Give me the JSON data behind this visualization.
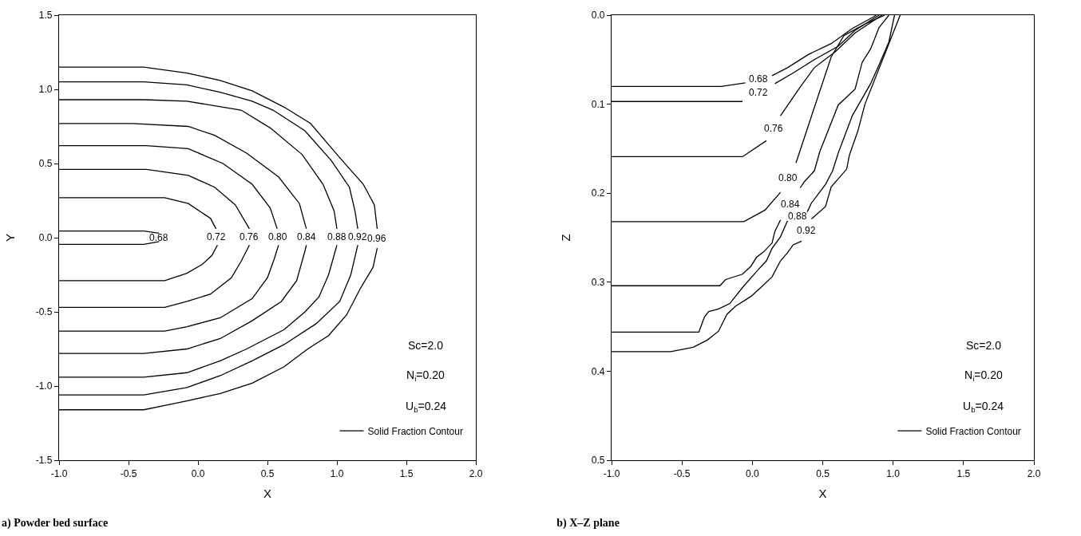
{
  "chart_data": [
    {
      "type": "line",
      "title": "a) Powder bed surface",
      "xlabel": "X",
      "ylabel": "Y",
      "xlim": [
        -1,
        2
      ],
      "ylim": [
        -1.5,
        1.5
      ],
      "xticks": [
        {
          "value": -1,
          "label": "-1.0"
        },
        {
          "value": -0.5,
          "label": "-0.5"
        },
        {
          "value": 0,
          "label": "0.0"
        },
        {
          "value": 0.5,
          "label": "0.5"
        },
        {
          "value": 1,
          "label": "1.0"
        },
        {
          "value": 1.5,
          "label": "1.5"
        },
        {
          "value": 2,
          "label": "2.0"
        }
      ],
      "yticks": [
        {
          "value": -1.5,
          "label": "-1.5"
        },
        {
          "value": -1,
          "label": "-1.0"
        },
        {
          "value": -0.5,
          "label": "-0.5"
        },
        {
          "value": 0,
          "label": "0.0"
        },
        {
          "value": 0.5,
          "label": "0.5"
        },
        {
          "value": 1,
          "label": "1.0"
        },
        {
          "value": 1.5,
          "label": "1.5"
        }
      ],
      "grid": false,
      "legend": "bottom right",
      "marker": "none",
      "line_style": "solid",
      "series": [
        {
          "name": "Solid Fraction Contour",
          "color": "#000000",
          "x": [
            -1,
            -0.39,
            -0.28,
            null,
            -0.28,
            -0.39,
            -1
          ],
          "values": [
            0.045,
            0.045,
            0.03,
            null,
            -0.026,
            -0.045,
            -0.045
          ]
        },
        {
          "color": "#000000",
          "x": [
            -1,
            -0.24,
            -0.07,
            0.09,
            0.13,
            null,
            0.14,
            0.1,
            0.03,
            -0.08,
            -0.24,
            -1
          ],
          "values": [
            0.27,
            0.27,
            0.23,
            0.13,
            0.06,
            null,
            -0.05,
            -0.12,
            -0.18,
            -0.24,
            -0.29,
            -0.29
          ]
        },
        {
          "color": "#000000",
          "x": [
            -1,
            -0.37,
            -0.07,
            0.12,
            0.27,
            0.37,
            null,
            0.37,
            0.31,
            0.24,
            0.09,
            -0.08,
            -0.24,
            -1
          ],
          "values": [
            0.46,
            0.46,
            0.42,
            0.34,
            0.22,
            0.06,
            null,
            -0.05,
            -0.16,
            -0.27,
            -0.38,
            -0.43,
            -0.47,
            -0.47
          ]
        },
        {
          "color": "#000000",
          "x": [
            -1,
            -0.37,
            -0.07,
            0.18,
            0.39,
            0.52,
            0.57,
            null,
            0.58,
            0.55,
            0.5,
            0.39,
            0.16,
            -0.08,
            -0.24,
            -1
          ],
          "values": [
            0.62,
            0.62,
            0.6,
            0.5,
            0.36,
            0.2,
            0.06,
            null,
            -0.05,
            -0.14,
            -0.27,
            -0.41,
            -0.54,
            -0.6,
            -0.63,
            -0.63
          ]
        },
        {
          "color": "#000000",
          "x": [
            -1,
            -0.47,
            -0.07,
            0.12,
            0.35,
            0.58,
            0.73,
            0.78,
            null,
            0.78,
            0.77,
            0.71,
            0.6,
            0.39,
            0.16,
            -0.08,
            -0.39,
            -1
          ],
          "values": [
            0.77,
            0.77,
            0.75,
            0.69,
            0.57,
            0.41,
            0.23,
            0.06,
            null,
            -0.05,
            -0.09,
            -0.29,
            -0.43,
            -0.56,
            -0.68,
            -0.75,
            -0.78,
            -0.78
          ]
        },
        {
          "color": "#000000",
          "x": [
            -1,
            -0.39,
            -0.08,
            0.31,
            0.52,
            0.75,
            0.9,
            0.98,
            1.0,
            null,
            1.0,
            0.94,
            0.87,
            0.77,
            0.62,
            0.35,
            0.16,
            -0.08,
            -0.39,
            -1
          ],
          "values": [
            0.93,
            0.93,
            0.92,
            0.86,
            0.74,
            0.56,
            0.36,
            0.18,
            0.06,
            null,
            -0.05,
            -0.25,
            -0.4,
            -0.5,
            -0.62,
            -0.75,
            -0.83,
            -0.91,
            -0.94,
            -0.94
          ]
        },
        {
          "color": "#000000",
          "x": [
            -1,
            -0.39,
            -0.08,
            0.16,
            0.39,
            0.54,
            0.77,
            0.96,
            1.09,
            1.13,
            1.15,
            null,
            1.15,
            1.1,
            1.02,
            0.85,
            0.62,
            0.39,
            0.16,
            -0.08,
            -0.39,
            -1
          ],
          "values": [
            1.05,
            1.05,
            1.03,
            0.98,
            0.92,
            0.86,
            0.72,
            0.52,
            0.34,
            0.18,
            0.06,
            null,
            -0.05,
            -0.25,
            -0.43,
            -0.58,
            -0.72,
            -0.83,
            -0.93,
            -1.01,
            -1.06,
            -1.06
          ]
        },
        {
          "color": "#000000",
          "x": [
            -1,
            -0.39,
            -0.08,
            0.16,
            0.39,
            0.62,
            0.81,
            1.02,
            1.19,
            1.27,
            1.29,
            null,
            1.29,
            1.26,
            1.17,
            1.07,
            0.94,
            0.79,
            0.62,
            0.39,
            0.16,
            -0.08,
            -0.39,
            -1
          ],
          "values": [
            1.15,
            1.15,
            1.11,
            1.06,
            0.99,
            0.88,
            0.77,
            0.54,
            0.36,
            0.22,
            0.06,
            null,
            -0.07,
            -0.2,
            -0.34,
            -0.52,
            -0.66,
            -0.75,
            -0.87,
            -0.98,
            -1.05,
            -1.1,
            -1.16,
            -1.16
          ]
        }
      ],
      "annotations": [
        "0.68",
        "0.72",
        "0.76",
        "0.80",
        "0.84",
        "0.88",
        "0.92",
        "0.96",
        "Sc=2.0",
        "N$_{i}$=0.20",
        "U$_{b}$=0.24"
      ]
    },
    {
      "type": "line",
      "title": "b) X–Z plane",
      "xlabel": "X",
      "ylabel": "Z",
      "xlim": [
        -1,
        2
      ],
      "ylim": [
        0.5,
        0
      ],
      "xticks": [
        {
          "value": -1,
          "label": "-1.0"
        },
        {
          "value": -0.5,
          "label": "-0.5"
        },
        {
          "value": 0,
          "label": "0.0"
        },
        {
          "value": 0.5,
          "label": "0.5"
        },
        {
          "value": 1,
          "label": "1.0"
        },
        {
          "value": 1.5,
          "label": "1.5"
        },
        {
          "value": 2,
          "label": "2.0"
        }
      ],
      "yticks": [
        {
          "value": 0,
          "label": "0.0"
        },
        0.1,
        0.2,
        0.3,
        0.4,
        0.5
      ],
      "grid": false,
      "legend": "bottom right",
      "marker": "none",
      "line_style": "solid",
      "series": [
        {
          "name": "Solid Fraction Contour",
          "color": "#000000",
          "x": [
            -1,
            -0.22,
            -0.05,
            null,
            0.14,
            0.25,
            0.4,
            0.56,
            0.71,
            0.86,
            0.88
          ],
          "values": [
            0.08,
            0.08,
            0.076,
            null,
            0.068,
            0.059,
            0.044,
            0.032,
            0.015,
            0.002,
            0
          ]
        },
        {
          "color": "#000000",
          "x": [
            -1,
            -0.07,
            null,
            0.16,
            0.29,
            0.44,
            0.61,
            0.73,
            0.9
          ],
          "values": [
            0.097,
            0.097,
            null,
            0.077,
            0.065,
            0.05,
            0.035,
            0.017,
            0
          ]
        },
        {
          "color": "#000000",
          "x": [
            -1,
            -0.07,
            0.1,
            null,
            0.2,
            0.33,
            0.44,
            0.59,
            0.73,
            0.92
          ],
          "values": [
            0.159,
            0.159,
            0.141,
            null,
            0.113,
            0.083,
            0.059,
            0.041,
            0.02,
            0
          ]
        },
        {
          "color": "#000000",
          "x": [
            -1,
            -0.06,
            0.09,
            0.2,
            null,
            0.31,
            0.44,
            0.56,
            0.65,
            0.8,
            0.94
          ],
          "values": [
            0.232,
            0.232,
            0.219,
            0.199,
            null,
            0.166,
            0.104,
            0.047,
            0.023,
            0.01,
            0
          ]
        },
        {
          "color": "#000000",
          "x": [
            -1,
            -0.23,
            -0.19,
            -0.07,
            -0.01,
            0.03,
            0.08,
            0.14,
            0.16,
            0.2,
            null,
            0.34,
            0.37,
            0.44,
            0.48,
            0.61,
            0.73,
            0.78,
            0.84,
            0.9,
            0.97
          ],
          "values": [
            0.304,
            0.304,
            0.297,
            0.291,
            0.282,
            0.272,
            0.266,
            0.256,
            0.243,
            0.23,
            null,
            0.194,
            0.187,
            0.175,
            0.153,
            0.101,
            0.083,
            0.053,
            0.038,
            0.014,
            0
          ]
        },
        {
          "color": "#000000",
          "x": [
            -1,
            -0.38,
            -0.34,
            -0.31,
            -0.24,
            -0.16,
            -0.07,
            0.03,
            0.1,
            0.14,
            0.2,
            0.25,
            null,
            0.39,
            0.42,
            0.52,
            0.57,
            0.61,
            0.71,
            0.84,
            0.9,
            0.97,
            1.01
          ],
          "values": [
            0.356,
            0.356,
            0.339,
            0.333,
            0.33,
            0.324,
            0.306,
            0.288,
            0.276,
            0.262,
            0.249,
            0.231,
            null,
            0.221,
            0.211,
            0.19,
            0.175,
            0.155,
            0.113,
            0.077,
            0.056,
            0.03,
            0
          ]
        },
        {
          "color": "#000000",
          "x": [
            -1,
            -0.58,
            -0.42,
            -0.32,
            -0.24,
            -0.18,
            -0.12,
            -0.01,
            0.06,
            0.14,
            0.2,
            0.25,
            0.29,
            0.35,
            null,
            0.42,
            0.52,
            0.56,
            0.67,
            0.69,
            0.75,
            0.8,
            0.9,
            0.95,
            1.0,
            1.05
          ],
          "values": [
            0.378,
            0.378,
            0.373,
            0.365,
            0.355,
            0.336,
            0.327,
            0.316,
            0.306,
            0.294,
            0.276,
            0.267,
            0.258,
            0.254,
            null,
            0.229,
            0.215,
            0.193,
            0.173,
            0.157,
            0.13,
            0.1,
            0.06,
            0.04,
            0.02,
            0
          ]
        }
      ],
      "annotations": [
        "0.68",
        "0.72",
        "0.76",
        "0.80",
        "0.84",
        "0.88",
        "0.92",
        "Sc=2.0",
        "N$_{i}$=0.20",
        "U$_{b}$=0.24"
      ]
    }
  ]
}
